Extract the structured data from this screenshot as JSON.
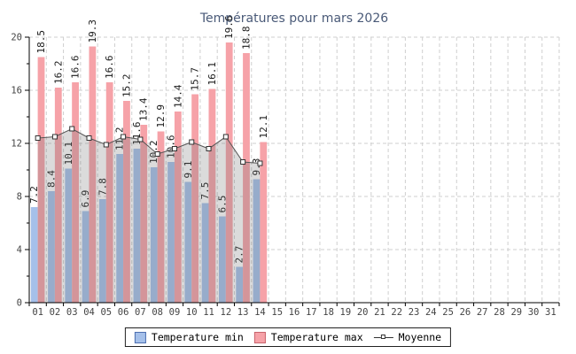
{
  "title": "Températures pour mars 2026",
  "legend": {
    "min_label": "Temperature min",
    "max_label": "Temperature max",
    "moyenne_label": "Moyenne"
  },
  "colors": {
    "bar_min": "#a5c0ea",
    "bar_max": "#f6a2a8",
    "area_fill": "rgba(110,110,110,0.25)",
    "line": "#555555",
    "marker_fill": "#ffffff",
    "marker_stroke": "#333333",
    "grid": "#cfcfcf",
    "axis": "#000000",
    "tick_label": "#444444",
    "value_label": "#1a1a1a",
    "title": "#4a5a78"
  },
  "chart_data": {
    "type": "bar",
    "title": "Températures pour mars 2026",
    "xlabel": "",
    "ylabel": "",
    "ylim": [
      0,
      20
    ],
    "yticks": [
      0,
      4,
      8,
      12,
      16,
      20
    ],
    "yminorticks": [
      2,
      6,
      10,
      14,
      18
    ],
    "grid": true,
    "legend_position": "bottom",
    "categories": [
      "01",
      "02",
      "03",
      "04",
      "05",
      "06",
      "07",
      "08",
      "09",
      "10",
      "11",
      "12",
      "13",
      "14",
      "15",
      "16",
      "17",
      "18",
      "19",
      "20",
      "21",
      "22",
      "23",
      "24",
      "25",
      "26",
      "27",
      "28",
      "29",
      "30",
      "31"
    ],
    "series": [
      {
        "name": "Temperature min",
        "type": "bar",
        "values": [
          7.2,
          8.4,
          10.1,
          6.9,
          7.8,
          11.2,
          11.6,
          10.2,
          10.6,
          9.1,
          7.5,
          6.5,
          2.7,
          9.3
        ]
      },
      {
        "name": "Temperature max",
        "type": "bar",
        "values": [
          18.5,
          16.2,
          16.6,
          19.3,
          16.6,
          15.2,
          13.4,
          12.9,
          14.4,
          15.7,
          16.1,
          19.6,
          18.8,
          12.1
        ]
      },
      {
        "name": "Moyenne",
        "type": "line",
        "values": [
          12.4,
          12.5,
          13.1,
          12.4,
          11.9,
          12.5,
          12.3,
          11.2,
          11.6,
          12.1,
          11.6,
          12.5,
          10.6,
          10.5
        ]
      }
    ]
  }
}
